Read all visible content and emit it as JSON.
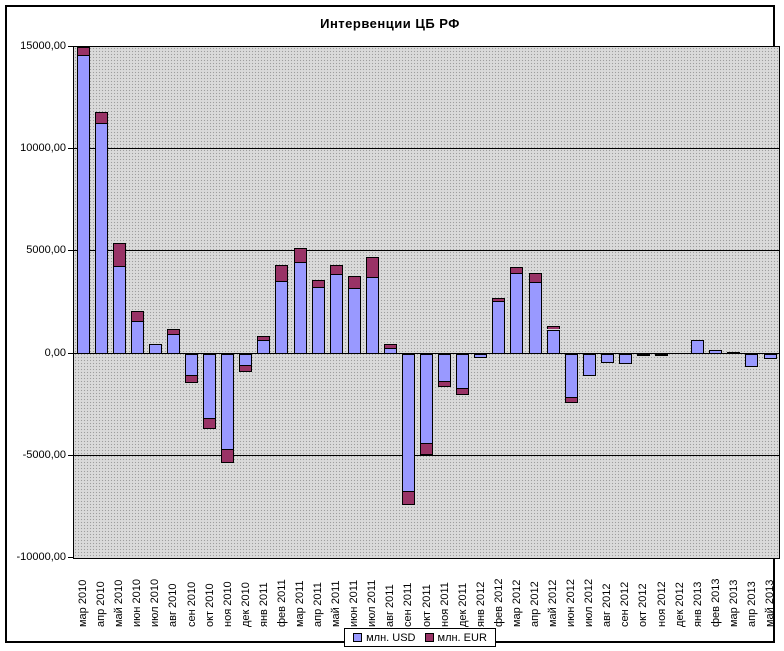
{
  "title": "Интервенции ЦБ РФ",
  "legend": {
    "usd": "млн. USD",
    "eur": "млн. EUR"
  },
  "colors": {
    "usd": "#9999FF",
    "eur": "#993366",
    "plot_background": "#DADADA",
    "plot_dots": "#9E9E9E",
    "gridline": "#000000",
    "bar_border": "#000000"
  },
  "y_axis": {
    "tick_labels": [
      "15000,00",
      "10000,00",
      "5000,00",
      "0,00",
      "-5000,00",
      "-10000,00"
    ],
    "tick_values": [
      15000,
      10000,
      5000,
      0,
      -5000,
      -10000
    ]
  },
  "chart_data": {
    "type": "bar",
    "stacked": true,
    "title": "Интервенции ЦБ РФ",
    "xlabel": "",
    "ylabel": "",
    "ylim": [
      -10000,
      15000
    ],
    "grid": true,
    "legend_position": "bottom",
    "categories": [
      "мар 2010",
      "апр 2010",
      "май 2010",
      "июн 2010",
      "июл 2010",
      "авг 2010",
      "сен 2010",
      "окт 2010",
      "ноя 2010",
      "дек 2010",
      "янв 2011",
      "фев 2011",
      "мар 2011",
      "апр 2011",
      "май 2011",
      "июн 2011",
      "июл 2011",
      "авг 2011",
      "сен 2011",
      "окт 2011",
      "ноя 2011",
      "дек 2011",
      "янв 2012",
      "фев 2012",
      "мар 2012",
      "апр 2012",
      "май 2012",
      "июн 2012",
      "июл 2012",
      "авг 2012",
      "сен 2012",
      "окт 2012",
      "ноя 2012",
      "дек 2012",
      "янв 2013",
      "фев 2013",
      "мар 2013",
      "апр 2013",
      "май 2013"
    ],
    "series": [
      {
        "name": "млн. USD",
        "color": "#9999FF",
        "values": [
          14600,
          11300,
          4300,
          1600,
          450,
          960,
          -1100,
          -3200,
          -4730,
          -600,
          670,
          3550,
          4470,
          3240,
          3900,
          3190,
          3750,
          260,
          -6780,
          -4430,
          -1410,
          -1740,
          -220,
          2570,
          3930,
          3490,
          1180,
          -2180,
          -1080,
          -440,
          -490,
          -120,
          -120,
          0,
          650,
          190,
          100,
          -650,
          -280
        ]
      },
      {
        "name": "млн. EUR",
        "color": "#993366",
        "values": [
          400,
          500,
          1100,
          480,
          0,
          240,
          -330,
          -480,
          -640,
          -280,
          190,
          770,
          680,
          360,
          460,
          600,
          1000,
          210,
          -650,
          -520,
          -210,
          -280,
          0,
          160,
          290,
          440,
          165,
          -260,
          0,
          0,
          0,
          0,
          0,
          0,
          0,
          0,
          0,
          0,
          0
        ]
      }
    ]
  }
}
